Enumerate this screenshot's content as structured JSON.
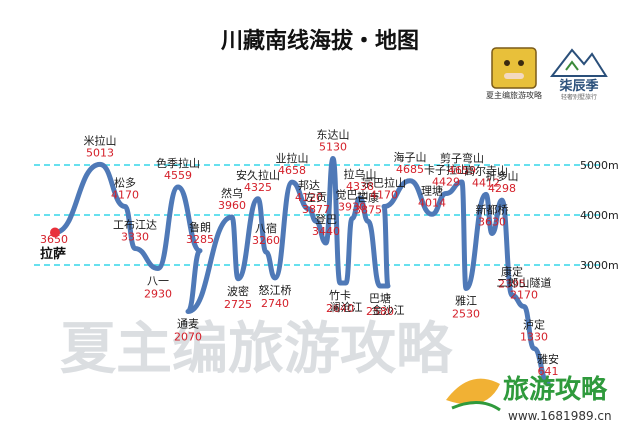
{
  "chart_data": {
    "type": "line",
    "title": "川藏南线海拔・地图",
    "y_unit": "m",
    "ylim": [
      1000,
      5700
    ],
    "reference_lines": [
      {
        "value": 5000,
        "label": "5000m"
      },
      {
        "value": 4000,
        "label": "4000m"
      },
      {
        "value": 3000,
        "label": "3000m"
      }
    ],
    "start_label": "拉萨",
    "points": [
      {
        "name": "拉萨",
        "elevation": 3650,
        "label_side": "below"
      },
      {
        "name": "米拉山",
        "elevation": 5013,
        "label_side": "above"
      },
      {
        "name": "松多",
        "elevation": 4170,
        "label_side": "above"
      },
      {
        "name": "工布江达",
        "elevation": 3330,
        "label_side": "above"
      },
      {
        "name": "八一",
        "elevation": 2930,
        "label_side": "below"
      },
      {
        "name": "色季拉山",
        "elevation": 4559,
        "label_side": "above"
      },
      {
        "name": "鲁朗",
        "elevation": 3285,
        "label_side": "above"
      },
      {
        "name": "通麦",
        "elevation": 2070,
        "label_side": "below"
      },
      {
        "name": "然乌",
        "elevation": 3960,
        "label_side": "above"
      },
      {
        "name": "波密",
        "elevation": 2725,
        "label_side": "below"
      },
      {
        "name": "安久拉山",
        "elevation": 4325,
        "label_side": "above"
      },
      {
        "name": "八宿",
        "elevation": 3260,
        "label_side": "above"
      },
      {
        "name": "怒江桥",
        "elevation": 2740,
        "label_side": "below"
      },
      {
        "name": "业拉山",
        "elevation": 4658,
        "label_side": "above"
      },
      {
        "name": "邦达",
        "elevation": 4120,
        "label_side": "above"
      },
      {
        "name": "左贡",
        "elevation": 3877,
        "label_side": "above"
      },
      {
        "name": "登巴",
        "elevation": 3440,
        "label_side": "above"
      },
      {
        "name": "东达山",
        "elevation": 5130,
        "label_side": "above"
      },
      {
        "name": "竹卡",
        "elevation": 2640,
        "label_side": "below"
      },
      {
        "name": "澜沧江",
        "elevation": 2640,
        "label_side": "below_sub"
      },
      {
        "name": "觉巴山",
        "elevation": 3930,
        "label_side": "above"
      },
      {
        "name": "拉乌山",
        "elevation": 4338,
        "label_side": "above"
      },
      {
        "name": "芒康",
        "elevation": 3875,
        "label_side": "above"
      },
      {
        "name": "巴塘",
        "elevation": 2580,
        "label_side": "below"
      },
      {
        "name": "金沙江",
        "elevation": 2580,
        "label_side": "below_sub"
      },
      {
        "name": "宗巴拉山",
        "elevation": 4170,
        "label_side": "above"
      },
      {
        "name": "海子山",
        "elevation": 4685,
        "label_side": "above"
      },
      {
        "name": "理塘",
        "elevation": 4014,
        "label_side": "above"
      },
      {
        "name": "卡子拉山",
        "elevation": 4429,
        "label_side": "above"
      },
      {
        "name": "剪子弯山",
        "elevation": 4659,
        "label_side": "above"
      },
      {
        "name": "雅江",
        "elevation": 2530,
        "label_side": "below"
      },
      {
        "name": "高尔寺山",
        "elevation": 4412,
        "label_side": "above"
      },
      {
        "name": "新都桥",
        "elevation": 3630,
        "label_side": "above"
      },
      {
        "name": "折多山",
        "elevation": 4298,
        "label_side": "above"
      },
      {
        "name": "康定",
        "elevation": 2395,
        "label_side": "above"
      },
      {
        "name": "二郎山隧道",
        "elevation": 2170,
        "label_side": "above"
      },
      {
        "name": "泸定",
        "elevation": 1330,
        "label_side": "above"
      },
      {
        "name": "雅安",
        "elevation": 641,
        "label_side": "above"
      }
    ]
  },
  "watermark": {
    "text": "夏主编旅游攻略",
    "brand": "旅游攻略",
    "site": "www.1681989.cn"
  },
  "logos": {
    "left_caption": "夏主编旅游攻略",
    "right_name": "柒辰季",
    "right_caption": "轻奢别墅旅行"
  },
  "colors": {
    "line": "#4f79b7",
    "ref_line": "#35d6e8",
    "start_dot": "#e8303b",
    "elev_text": "#d4202a"
  }
}
